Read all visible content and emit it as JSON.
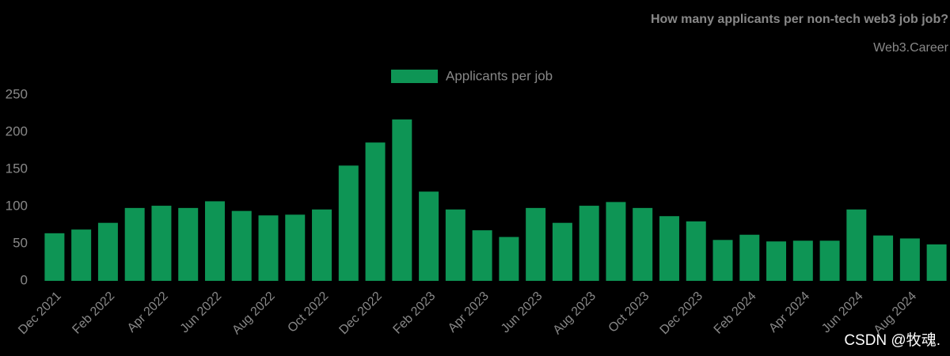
{
  "chart_data": {
    "type": "bar",
    "title": "How many applicants per non-tech web3 job job?",
    "subtitle": "Web3.Career",
    "watermark": "CSDN @牧魂.",
    "categories": [
      "Dec 2021",
      null,
      "Feb 2022",
      null,
      "Apr 2022",
      null,
      "Jun 2022",
      null,
      "Aug 2022",
      null,
      "Oct 2022",
      null,
      "Dec 2022",
      null,
      "Feb 2023",
      null,
      "Apr 2023",
      null,
      "Jun 2023",
      null,
      "Aug 2023",
      null,
      "Oct 2023",
      null,
      "Dec 2023",
      null,
      "Feb 2024",
      null,
      "Apr 2024",
      null,
      "Jun 2024",
      null,
      "Aug 2024",
      null
    ],
    "series": [
      {
        "name": "Applicants per job",
        "color": "#0e9555",
        "values": [
          64,
          69,
          78,
          98,
          101,
          98,
          107,
          94,
          88,
          89,
          96,
          155,
          186,
          217,
          120,
          96,
          68,
          59,
          98,
          78,
          101,
          106,
          98,
          87,
          80,
          55,
          62,
          53,
          54,
          54,
          96,
          61,
          57,
          49
        ]
      }
    ],
    "ylim": [
      0,
      250
    ],
    "yticks": [
      0,
      50,
      100,
      150,
      200,
      250
    ],
    "grid": false
  }
}
